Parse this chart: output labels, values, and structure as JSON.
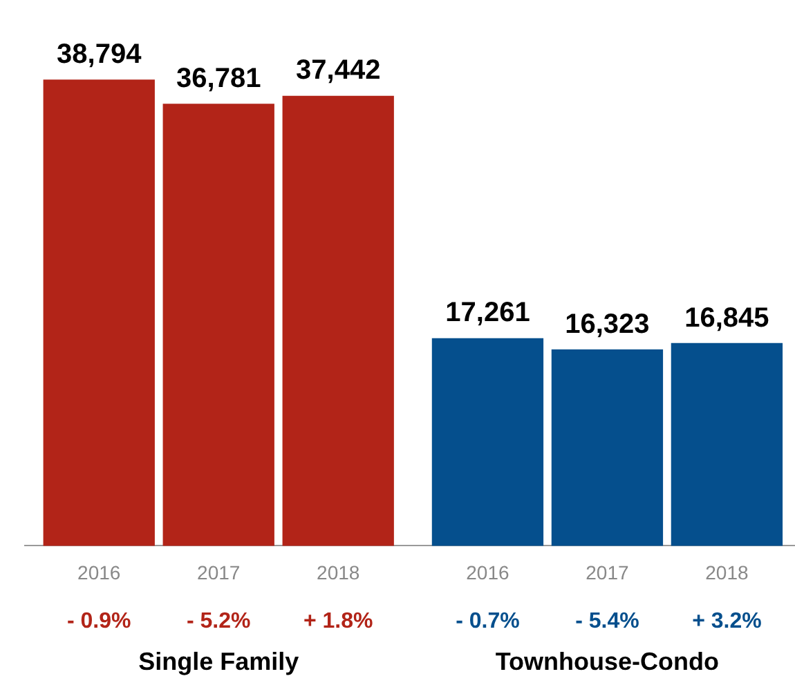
{
  "chart_data": {
    "type": "bar",
    "categories": [
      "2016",
      "2017",
      "2018",
      "2016",
      "2017",
      "2018"
    ],
    "values": [
      38794,
      36781,
      37442,
      17261,
      16323,
      16845
    ],
    "colors": [
      "#b22418",
      "#b22418",
      "#b22418",
      "#054f8d",
      "#054f8d",
      "#054f8d"
    ],
    "value_labels": [
      "38,794",
      "36,781",
      "37,442",
      "17,261",
      "16,323",
      "16,845"
    ],
    "grid": false,
    "legend": false,
    "annotations": [
      "- 0.9%",
      "- 5.2%",
      "+ 1.8%",
      "- 0.7%",
      "- 5.4%",
      "+ 3.2%",
      "Single Family",
      "Townhouse-Condo"
    ]
  }
}
